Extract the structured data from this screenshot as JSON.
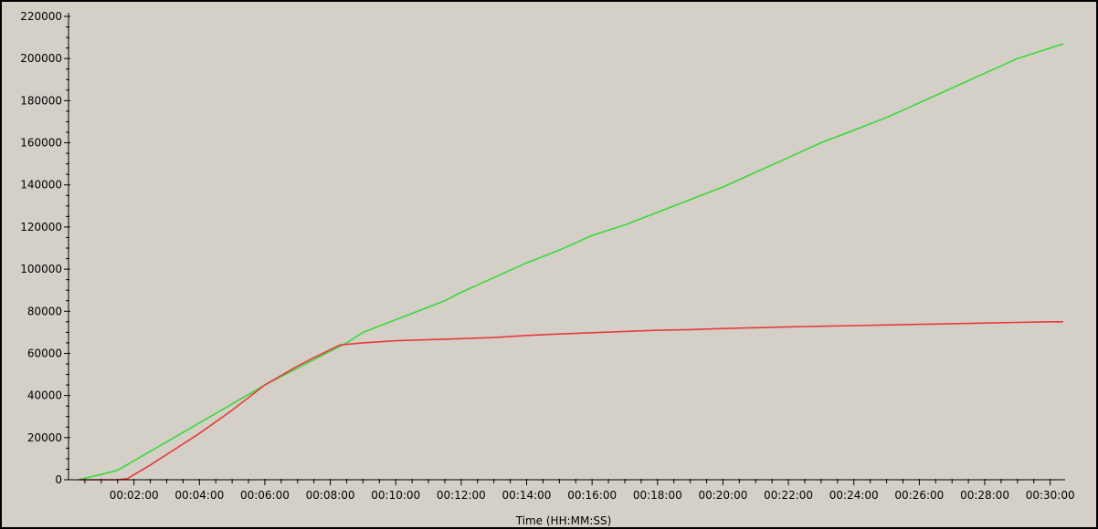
{
  "chart_data": {
    "type": "line",
    "title": "",
    "xlabel": "Time (HH:MM:SS)",
    "ylabel": "",
    "xlim": [
      0,
      30.4
    ],
    "ylim": [
      0,
      220000
    ],
    "y_ticks": [
      0,
      20000,
      40000,
      60000,
      80000,
      100000,
      120000,
      140000,
      160000,
      180000,
      200000,
      220000
    ],
    "x_ticks": [
      {
        "minute": 2,
        "label": "00:02:00"
      },
      {
        "minute": 4,
        "label": "00:04:00"
      },
      {
        "minute": 6,
        "label": "00:06:00"
      },
      {
        "minute": 8,
        "label": "00:08:00"
      },
      {
        "minute": 10,
        "label": "00:10:00"
      },
      {
        "minute": 12,
        "label": "00:12:00"
      },
      {
        "minute": 14,
        "label": "00:14:00"
      },
      {
        "minute": 16,
        "label": "00:16:00"
      },
      {
        "minute": 18,
        "label": "00:18:00"
      },
      {
        "minute": 20,
        "label": "00:20:00"
      },
      {
        "minute": 22,
        "label": "00:22:00"
      },
      {
        "minute": 24,
        "label": "00:24:00"
      },
      {
        "minute": 26,
        "label": "00:26:00"
      },
      {
        "minute": 28,
        "label": "00:28:00"
      },
      {
        "minute": 30,
        "label": "00:30:00"
      }
    ],
    "grid": false,
    "legend": "none",
    "background_color": "#d4d0c8",
    "series": [
      {
        "color": "#3ad83a",
        "x": [
          0.3,
          1.0,
          1.5,
          2.0,
          3.0,
          4.0,
          5.0,
          6.0,
          7.0,
          8.0,
          8.5,
          9.0,
          10.0,
          11.0,
          11.5,
          12.0,
          13.0,
          14.0,
          15.0,
          16.0,
          17.0,
          18.0,
          19.0,
          20.0,
          21.0,
          22.0,
          23.0,
          24.0,
          25.0,
          26.0,
          27.0,
          28.0,
          29.0,
          30.0,
          30.4
        ],
        "y": [
          0,
          2500,
          4500,
          9000,
          18000,
          27000,
          36000,
          45000,
          53000,
          61000,
          65000,
          70000,
          76000,
          82000,
          85000,
          89000,
          96000,
          103000,
          109000,
          116000,
          121000,
          127000,
          133000,
          139000,
          146000,
          153000,
          160000,
          166000,
          172000,
          179000,
          186000,
          193000,
          200000,
          205000,
          207000
        ]
      },
      {
        "color": "#e83a3a",
        "x": [
          0.3,
          1.5,
          1.8,
          2.5,
          3.0,
          4.0,
          5.0,
          6.0,
          7.0,
          7.5,
          8.3,
          9.0,
          10.0,
          11.0,
          12.0,
          13.0,
          14.0,
          15.0,
          16.0,
          17.0,
          18.0,
          19.0,
          20.0,
          21.0,
          22.0,
          23.0,
          24.0,
          25.0,
          26.0,
          27.0,
          28.0,
          29.0,
          30.0,
          30.4
        ],
        "y": [
          0,
          0,
          500,
          7000,
          12000,
          22000,
          33000,
          45000,
          54000,
          58000,
          64000,
          65000,
          66000,
          66500,
          67000,
          67500,
          68500,
          69200,
          69800,
          70400,
          71000,
          71300,
          71800,
          72200,
          72600,
          72900,
          73200,
          73500,
          73800,
          74100,
          74400,
          74700,
          75000,
          75000
        ]
      }
    ]
  }
}
